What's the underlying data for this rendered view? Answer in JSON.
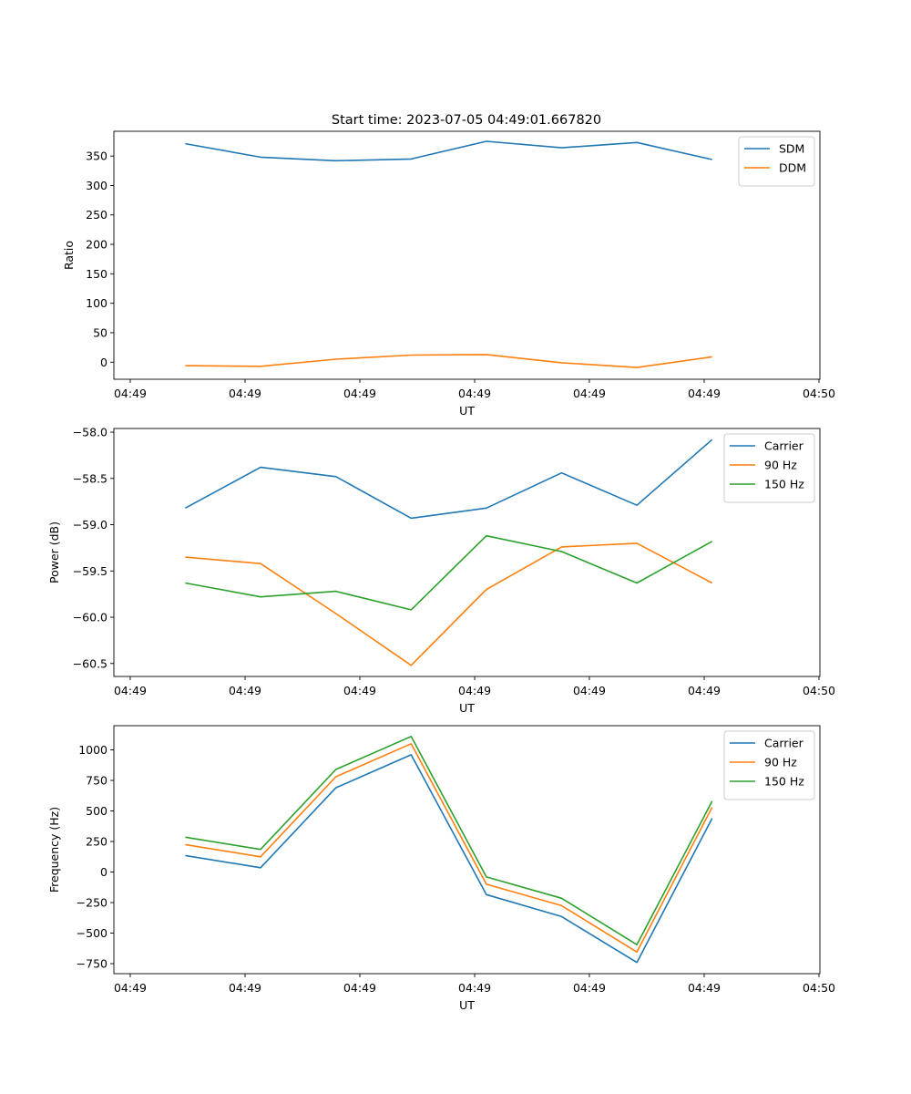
{
  "figure_title": "Start time: 2023-07-05 04:49:01.667820",
  "chart_data": [
    {
      "type": "line",
      "ylabel": "Ratio",
      "xlabel": "UT",
      "x_tick_labels": [
        "04:49",
        "04:49",
        "04:49",
        "04:49",
        "04:49",
        "04:49",
        "04:49"
      ],
      "x_end_tick_label": "04:50",
      "ylim": [
        -29,
        392
      ],
      "y_ticks": [
        0,
        50,
        100,
        150,
        200,
        250,
        300,
        350
      ],
      "y_tick_labels": [
        "0",
        "50",
        "100",
        "150",
        "200",
        "250",
        "300",
        "350"
      ],
      "legend_position": "upper right",
      "series": [
        {
          "name": "SDM",
          "color": "#1f77b4",
          "values": [
            371,
            348,
            342,
            345,
            375,
            364,
            373,
            344
          ]
        },
        {
          "name": "DDM",
          "color": "#ff7f0e",
          "values": [
            -6,
            -7,
            5,
            12,
            13,
            -1,
            -9,
            9
          ]
        }
      ]
    },
    {
      "type": "line",
      "ylabel": "Power (dB)",
      "xlabel": "UT",
      "x_tick_labels": [
        "04:49",
        "04:49",
        "04:49",
        "04:49",
        "04:49",
        "04:49",
        "04:49"
      ],
      "x_end_tick_label": "04:50",
      "ylim": [
        -60.64,
        -57.96
      ],
      "y_ticks": [
        -60.5,
        -60.0,
        -59.5,
        -59.0,
        -58.5,
        -58.0
      ],
      "y_tick_labels": [
        "−60.5",
        "−60.0",
        "−59.5",
        "−59.0",
        "−58.5",
        "−58.0"
      ],
      "legend_position": "upper right",
      "series": [
        {
          "name": "Carrier",
          "color": "#1f77b4",
          "values": [
            -58.82,
            -58.38,
            -58.48,
            -58.93,
            -58.82,
            -58.44,
            -58.79,
            -58.08
          ]
        },
        {
          "name": "90 Hz",
          "color": "#ff7f0e",
          "values": [
            -59.35,
            -59.42,
            -59.96,
            -60.52,
            -59.7,
            -59.24,
            -59.2,
            -59.63
          ]
        },
        {
          "name": "150 Hz",
          "color": "#2ca02c",
          "values": [
            -59.63,
            -59.78,
            -59.72,
            -59.92,
            -59.12,
            -59.29,
            -59.63,
            -59.18
          ]
        }
      ]
    },
    {
      "type": "line",
      "ylabel": "Frequency (Hz)",
      "xlabel": "UT",
      "x_tick_labels": [
        "04:49",
        "04:49",
        "04:49",
        "04:49",
        "04:49",
        "04:49",
        "04:49"
      ],
      "x_end_tick_label": "04:50",
      "ylim": [
        -832,
        1198
      ],
      "y_ticks": [
        -750,
        -500,
        -250,
        0,
        250,
        500,
        750,
        1000
      ],
      "y_tick_labels": [
        "−750",
        "−500",
        "−250",
        "0",
        "250",
        "500",
        "750",
        "1000"
      ],
      "legend_position": "upper right",
      "series": [
        {
          "name": "Carrier",
          "color": "#1f77b4",
          "values": [
            135,
            35,
            690,
            960,
            -185,
            -365,
            -740,
            440
          ]
        },
        {
          "name": "90 Hz",
          "color": "#ff7f0e",
          "values": [
            225,
            125,
            780,
            1050,
            -100,
            -275,
            -655,
            530
          ]
        },
        {
          "name": "150 Hz",
          "color": "#2ca02c",
          "values": [
            285,
            185,
            840,
            1110,
            -40,
            -215,
            -595,
            580
          ]
        }
      ]
    }
  ]
}
